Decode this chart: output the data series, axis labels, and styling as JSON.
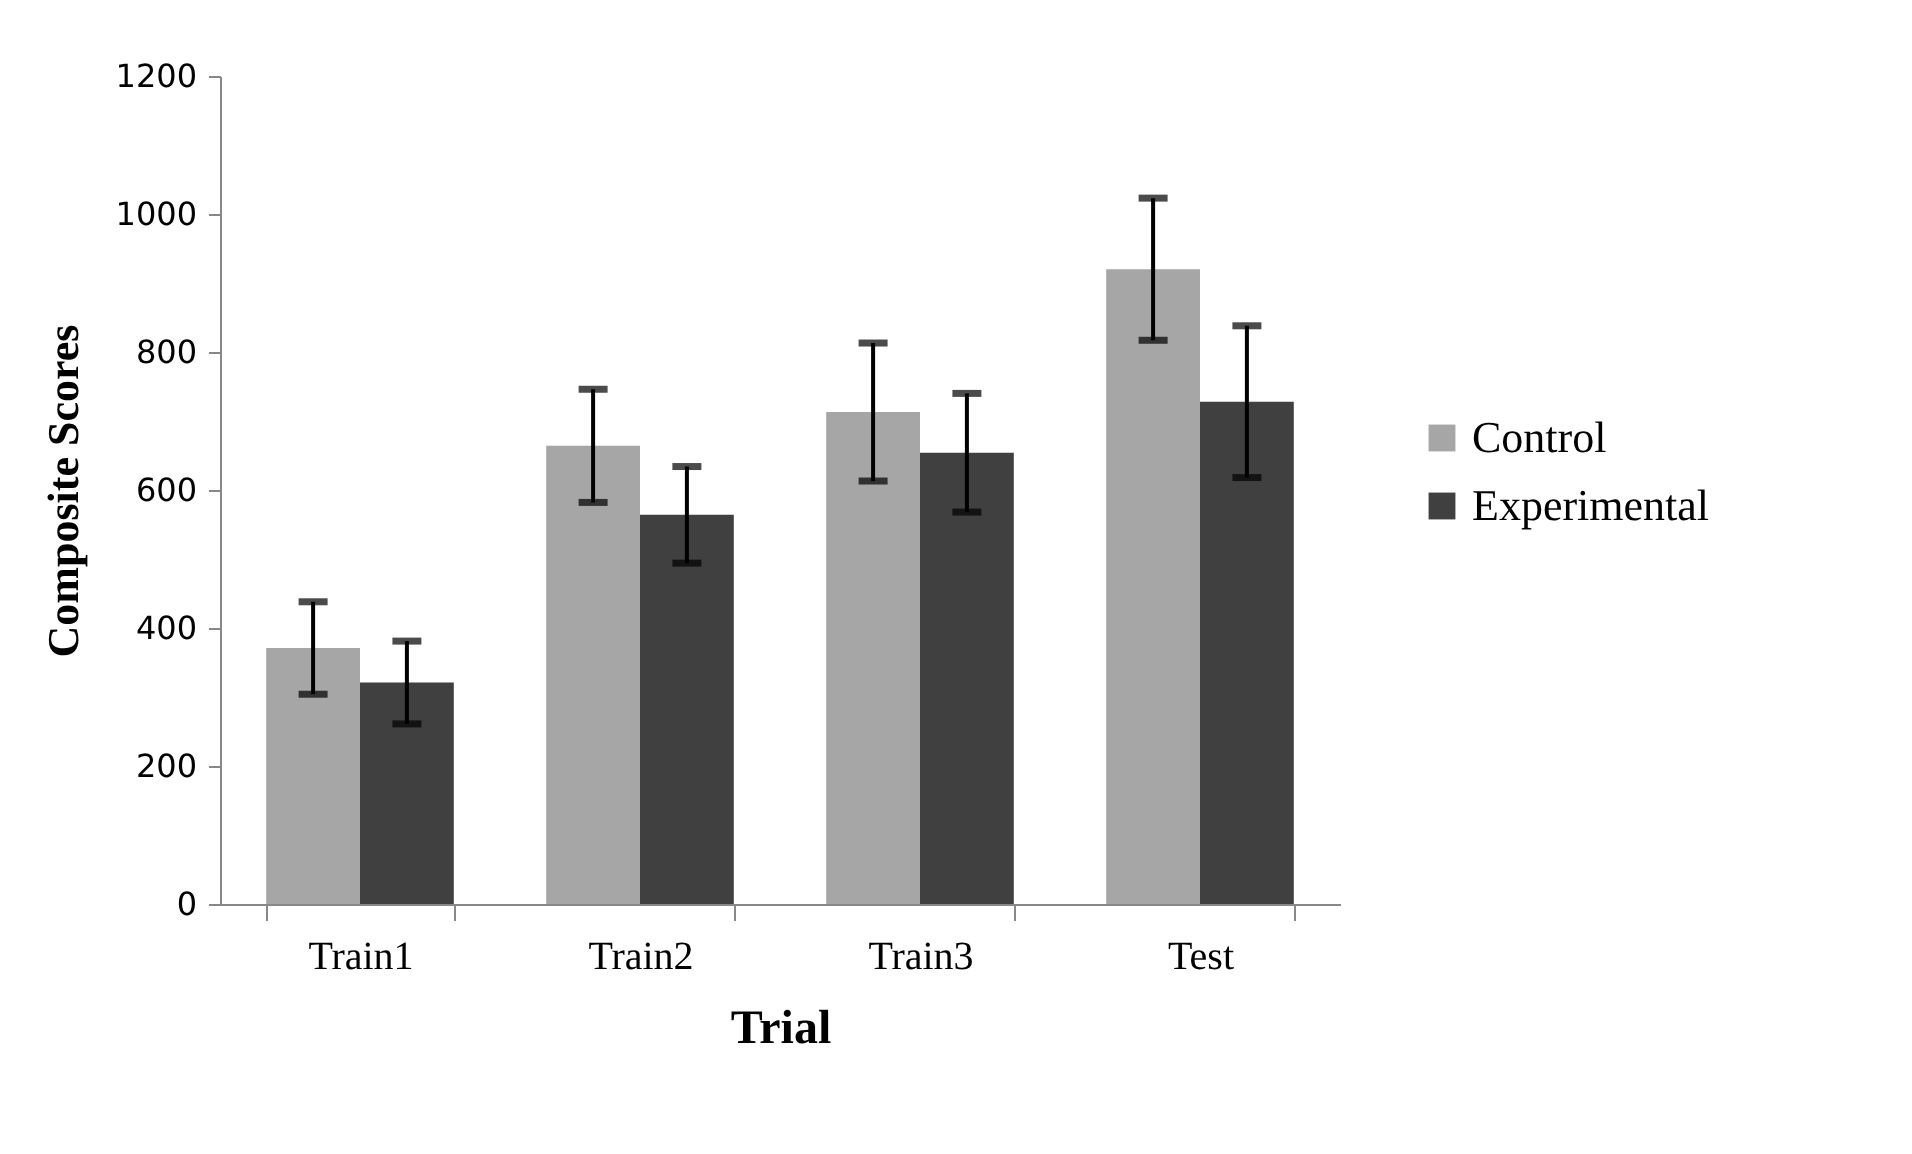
{
  "chart_data": {
    "type": "bar",
    "xlabel": "Trial",
    "ylabel": "Composite Scores",
    "categories": [
      "Train1",
      "Train2",
      "Train3",
      "Test"
    ],
    "series": [
      {
        "name": "Control",
        "color": "#a6a6a6",
        "values": [
          371,
          664,
          713,
          920
        ],
        "errors": [
          67,
          82,
          100,
          103
        ]
      },
      {
        "name": "Experimental",
        "color": "#404040",
        "values": [
          321,
          564,
          654,
          728
        ],
        "errors": [
          60,
          70,
          86,
          110
        ]
      }
    ],
    "ylim": [
      0,
      1200
    ],
    "yticks": [
      0,
      200,
      400,
      600,
      800,
      1000,
      1200
    ],
    "grid": false,
    "legend": "right"
  }
}
